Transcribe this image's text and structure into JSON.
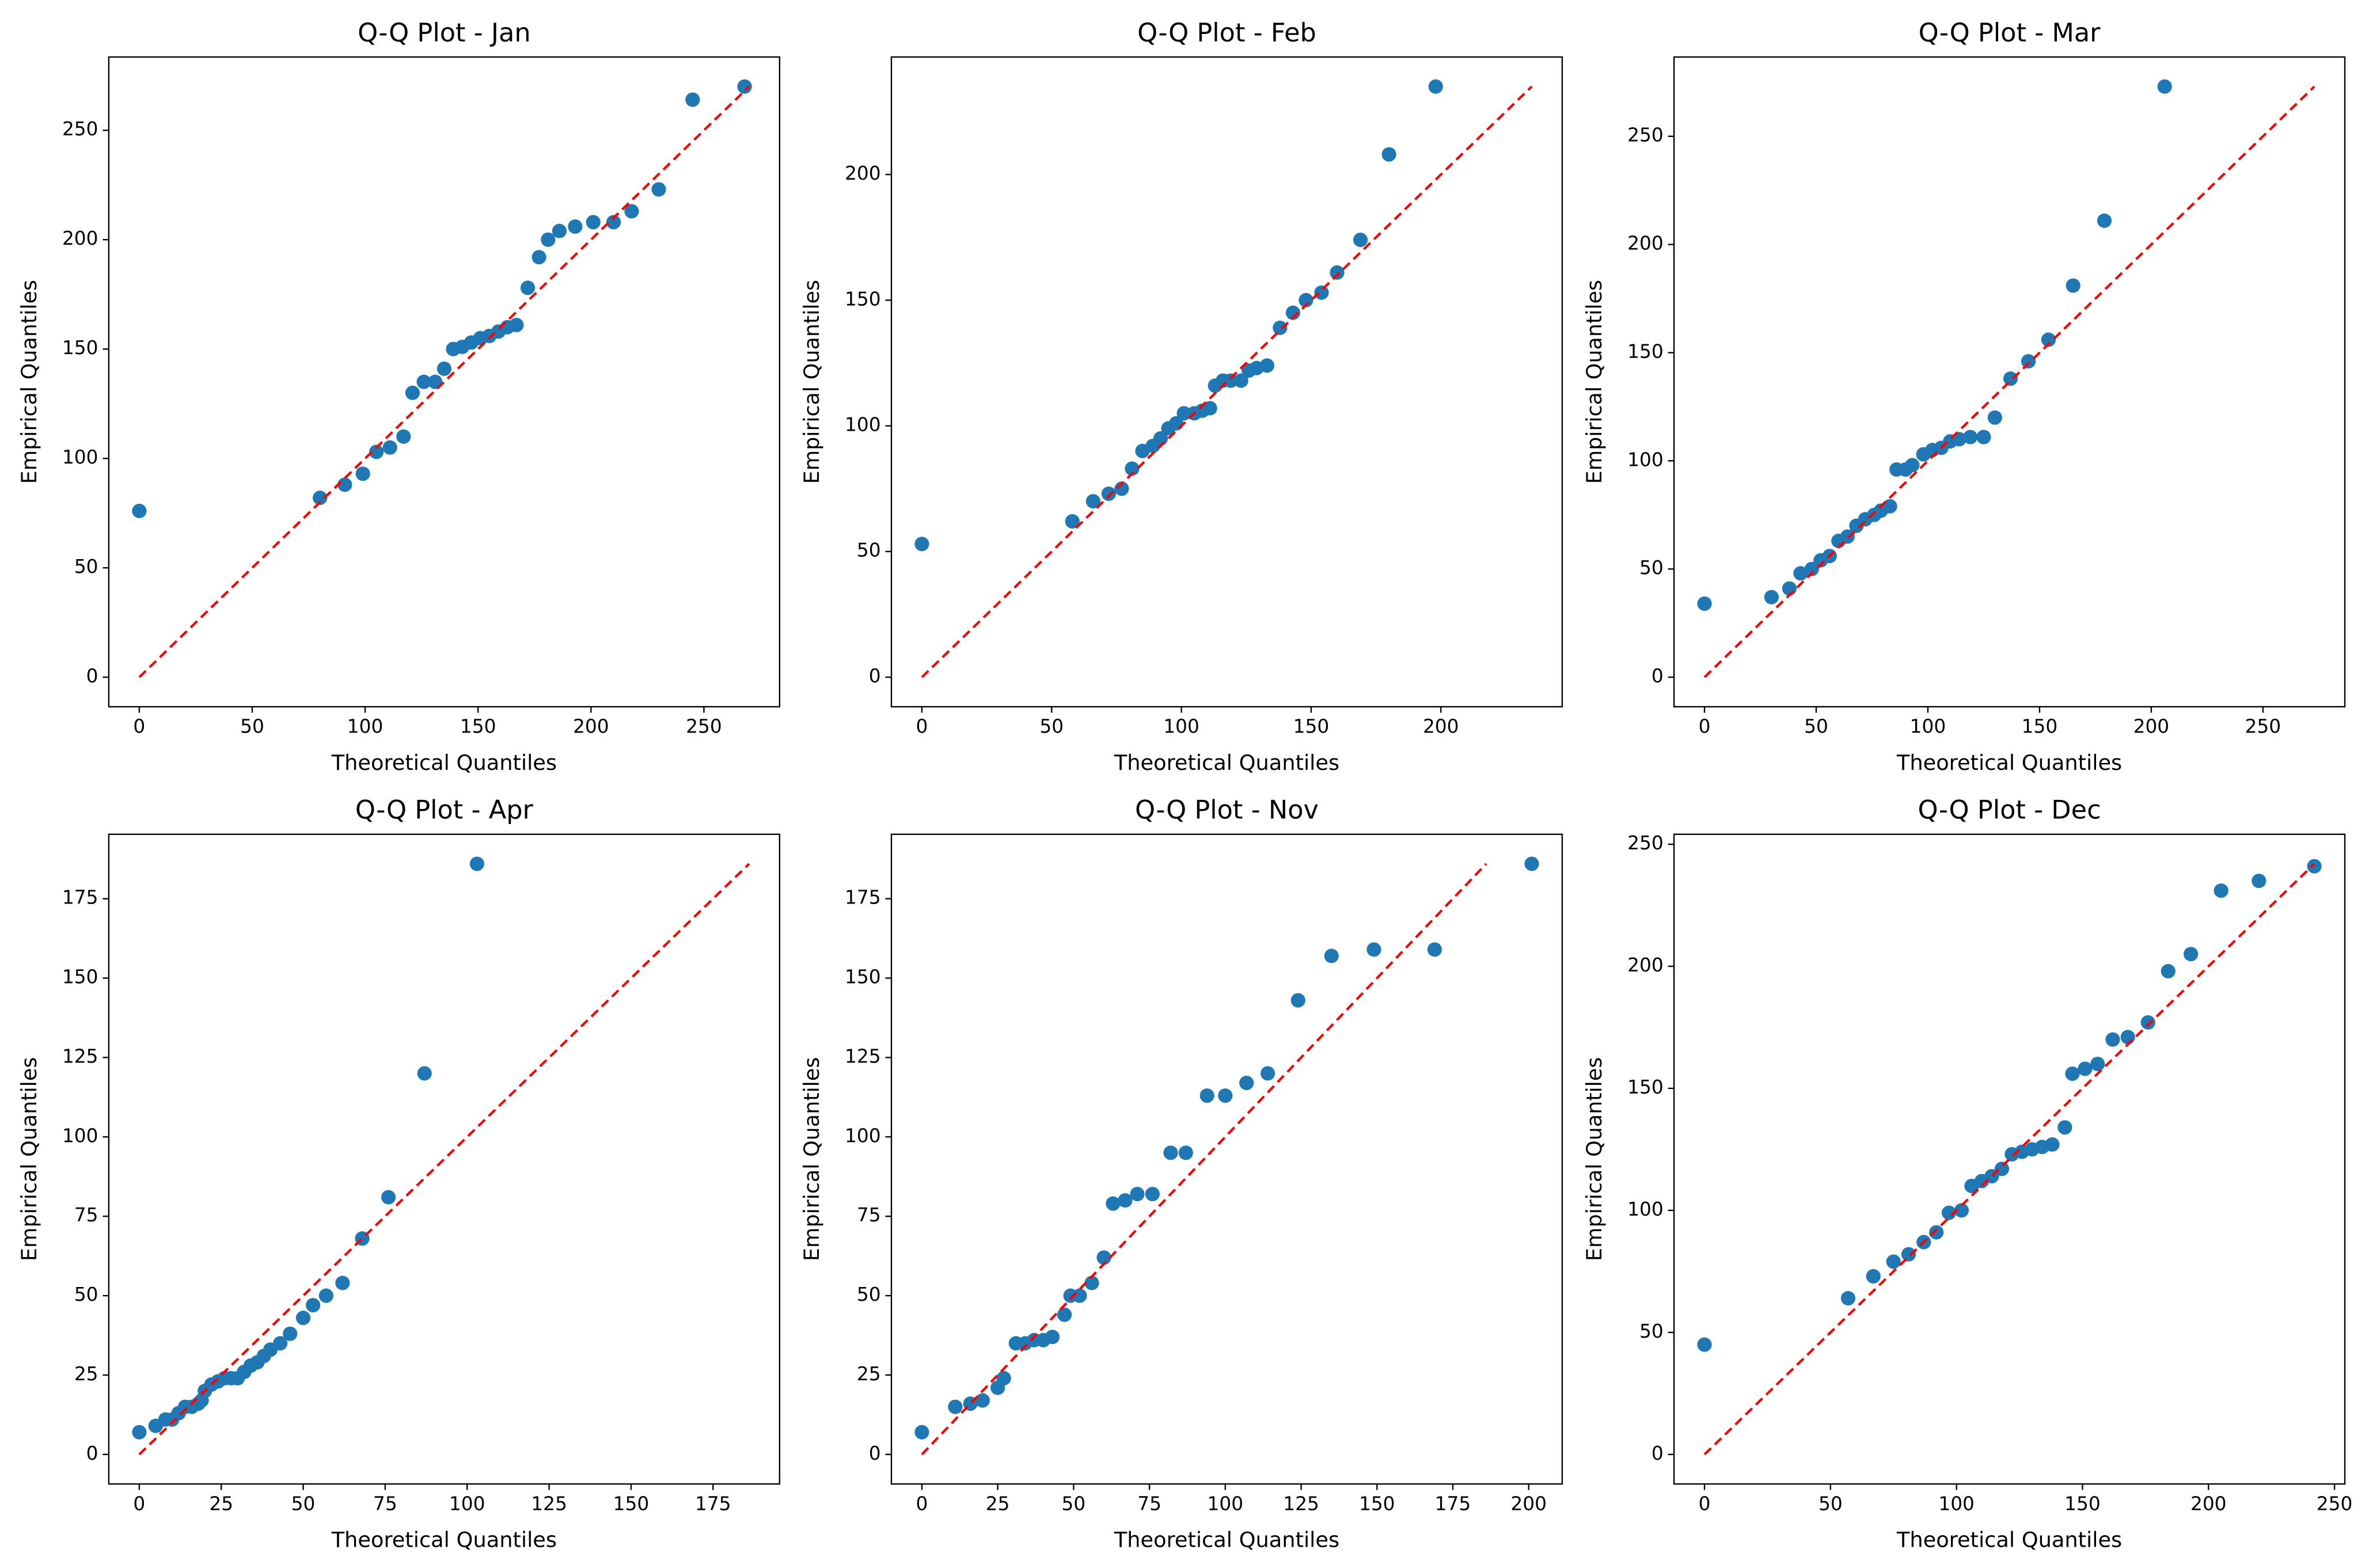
{
  "chart_data": [
    {
      "type": "scatter",
      "title": "Q-Q Plot - Jan",
      "x_label": "Theoretical Quantiles",
      "y_label": "Empirical Quantiles",
      "color": "#1f77b4",
      "x": [
        0,
        80,
        91,
        99,
        105,
        111,
        117,
        121,
        126,
        131,
        135,
        139,
        143,
        147,
        151,
        155,
        159,
        163,
        167,
        172,
        177,
        181,
        186,
        193,
        201,
        210,
        218,
        230,
        245,
        268
      ],
      "values": [
        76,
        82,
        88,
        93,
        103,
        105,
        110,
        130,
        135,
        135,
        141,
        150,
        151,
        153,
        155,
        156,
        158,
        160,
        161,
        178,
        192,
        200,
        204,
        206,
        208,
        208,
        213,
        223,
        264,
        270
      ],
      "ref_line": {
        "x": [
          0,
          270
        ],
        "y": [
          0,
          270
        ],
        "color": "#ff0000"
      },
      "xlim": [
        -13.5,
        283.5
      ],
      "ylim": [
        -13.5,
        283.5
      ],
      "xticks": [
        0,
        50,
        100,
        150,
        200,
        250
      ],
      "yticks": [
        0,
        50,
        100,
        150,
        200,
        250
      ]
    },
    {
      "type": "scatter",
      "title": "Q-Q Plot - Feb",
      "x_label": "Theoretical Quantiles",
      "y_label": "Empirical Quantiles",
      "color": "#1f77b4",
      "x": [
        0,
        58,
        66,
        72,
        77,
        81,
        85,
        89,
        92,
        95,
        98,
        101,
        105,
        108,
        111,
        113,
        116,
        119,
        123,
        126,
        129,
        133,
        138,
        143,
        148,
        154,
        160,
        169,
        180,
        198
      ],
      "values": [
        53,
        62,
        70,
        73,
        75,
        83,
        90,
        92,
        95,
        99,
        101,
        105,
        105,
        106,
        107,
        116,
        118,
        118,
        118,
        122,
        123,
        124,
        139,
        145,
        150,
        153,
        161,
        174,
        208,
        235
      ],
      "ref_line": {
        "x": [
          0,
          235
        ],
        "y": [
          0,
          235
        ],
        "color": "#ff0000"
      },
      "xlim": [
        -11.75,
        246.75
      ],
      "ylim": [
        -11.75,
        246.75
      ],
      "xticks": [
        0,
        50,
        100,
        150,
        200
      ],
      "yticks": [
        0,
        50,
        100,
        150,
        200
      ]
    },
    {
      "type": "scatter",
      "title": "Q-Q Plot - Mar",
      "x_label": "Theoretical Quantiles",
      "y_label": "Empirical Quantiles",
      "color": "#1f77b4",
      "x": [
        0,
        30,
        38,
        43,
        48,
        52,
        56,
        60,
        64,
        68,
        72,
        76,
        79,
        83,
        86,
        90,
        93,
        98,
        102,
        106,
        110,
        114,
        119,
        125,
        130,
        137,
        145,
        154,
        165,
        179,
        206
      ],
      "values": [
        34,
        37,
        41,
        48,
        50,
        54,
        56,
        63,
        65,
        70,
        73,
        75,
        77,
        79,
        96,
        96,
        98,
        103,
        105,
        106,
        109,
        110,
        111,
        111,
        120,
        138,
        146,
        156,
        181,
        211,
        273
      ],
      "ref_line": {
        "x": [
          0,
          273
        ],
        "y": [
          0,
          273
        ],
        "color": "#ff0000"
      },
      "xlim": [
        -13.65,
        286.65
      ],
      "ylim": [
        -13.65,
        286.65
      ],
      "xticks": [
        0,
        50,
        100,
        150,
        200,
        250
      ],
      "yticks": [
        0,
        50,
        100,
        150,
        200,
        250
      ]
    },
    {
      "type": "scatter",
      "title": "Q-Q Plot - Apr",
      "x_label": "Theoretical Quantiles",
      "y_label": "Empirical Quantiles",
      "color": "#1f77b4",
      "x": [
        0,
        5,
        8,
        10,
        12,
        14,
        16,
        18,
        19,
        20,
        22,
        24,
        26,
        28,
        30,
        32,
        34,
        36,
        38,
        40,
        43,
        46,
        50,
        53,
        57,
        62,
        68,
        76,
        87,
        103
      ],
      "values": [
        7,
        9,
        11,
        11,
        13,
        15,
        15,
        16,
        17,
        20,
        22,
        23,
        24,
        24,
        24,
        26,
        28,
        29,
        31,
        33,
        35,
        38,
        43,
        47,
        50,
        54,
        68,
        81,
        120,
        186
      ],
      "ref_line": {
        "x": [
          0,
          186
        ],
        "y": [
          0,
          186
        ],
        "color": "#ff0000"
      },
      "xlim": [
        -9.3,
        195.3
      ],
      "ylim": [
        -9.3,
        195.3
      ],
      "xticks": [
        0,
        25,
        50,
        75,
        100,
        125,
        150,
        175
      ],
      "yticks": [
        0,
        25,
        50,
        75,
        100,
        125,
        150,
        175
      ]
    },
    {
      "type": "scatter",
      "title": "Q-Q Plot - Nov",
      "x_label": "Theoretical Quantiles",
      "y_label": "Empirical Quantiles",
      "color": "#1f77b4",
      "x": [
        0,
        11,
        16,
        20,
        25,
        27,
        31,
        34,
        37,
        40,
        43,
        47,
        49,
        52,
        56,
        60,
        63,
        67,
        71,
        76,
        82,
        87,
        94,
        100,
        107,
        114,
        124,
        135,
        149,
        169,
        201
      ],
      "values": [
        7,
        15,
        16,
        17,
        21,
        24,
        35,
        35,
        36,
        36,
        37,
        44,
        50,
        50,
        54,
        62,
        79,
        80,
        82,
        82,
        95,
        95,
        113,
        113,
        117,
        120,
        143,
        157,
        159,
        159,
        186
      ],
      "ref_line": {
        "x": [
          0,
          186
        ],
        "y": [
          0,
          186
        ],
        "color": "#ff0000"
      },
      "xlim": [
        -10.05,
        211.05
      ],
      "ylim": [
        -9.3,
        195.3
      ],
      "xticks": [
        0,
        25,
        50,
        75,
        100,
        125,
        150,
        175,
        200
      ],
      "yticks": [
        0,
        25,
        50,
        75,
        100,
        125,
        150,
        175
      ]
    },
    {
      "type": "scatter",
      "title": "Q-Q Plot - Dec",
      "x_label": "Theoretical Quantiles",
      "y_label": "Empirical Quantiles",
      "color": "#1f77b4",
      "x": [
        0,
        57,
        67,
        75,
        81,
        87,
        92,
        97,
        102,
        106,
        110,
        114,
        118,
        122,
        126,
        130,
        134,
        138,
        143,
        146,
        151,
        156,
        162,
        168,
        176,
        184,
        193,
        205,
        220,
        242
      ],
      "values": [
        45,
        64,
        73,
        79,
        82,
        87,
        91,
        99,
        100,
        110,
        112,
        114,
        117,
        123,
        124,
        125,
        126,
        127,
        134,
        156,
        158,
        160,
        170,
        171,
        177,
        198,
        205,
        231,
        235,
        241
      ],
      "ref_line": {
        "x": [
          0,
          242
        ],
        "y": [
          0,
          242
        ],
        "color": "#ff0000"
      },
      "xlim": [
        -12.1,
        254.1
      ],
      "ylim": [
        -12.1,
        254.1
      ],
      "xticks": [
        0,
        50,
        100,
        150,
        200,
        250
      ],
      "yticks": [
        0,
        50,
        100,
        150,
        200,
        250
      ]
    }
  ]
}
